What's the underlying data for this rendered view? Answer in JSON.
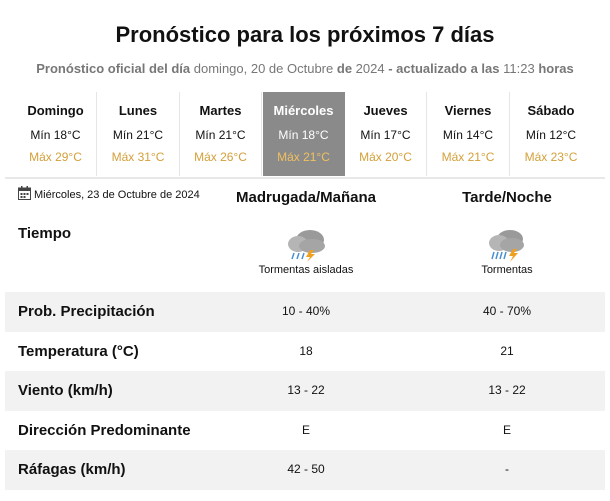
{
  "header": {
    "title": "Pronóstico para los próximos 7 días",
    "subtitle": [
      {
        "text": "Pronóstico oficial del día",
        "bold": true
      },
      {
        "text": "domingo, 20 de Octubre",
        "bold": false
      },
      {
        "text": "de",
        "bold": true
      },
      {
        "text": "2024",
        "bold": false
      },
      {
        "text": "- actualizado a las",
        "bold": true
      },
      {
        "text": "11:23",
        "bold": false
      },
      {
        "text": "horas",
        "bold": true
      }
    ]
  },
  "days": [
    {
      "name": "Domingo",
      "min": "Mín 18°C",
      "max": "Máx 29°C",
      "selected": false
    },
    {
      "name": "Lunes",
      "min": "Mín 21°C",
      "max": "Máx 31°C",
      "selected": false
    },
    {
      "name": "Martes",
      "min": "Mín 21°C",
      "max": "Máx 26°C",
      "selected": false
    },
    {
      "name": "Miércoles",
      "min": "Mín 18°C",
      "max": "Máx 21°C",
      "selected": true
    },
    {
      "name": "Jueves",
      "min": "Mín 17°C",
      "max": "Máx 20°C",
      "selected": false
    },
    {
      "name": "Viernes",
      "min": "Mín 14°C",
      "max": "Máx 21°C",
      "selected": false
    },
    {
      "name": "Sábado",
      "min": "Mín 12°C",
      "max": "Máx 23°C",
      "selected": false
    }
  ],
  "detail": {
    "date": "Miércoles, 23 de Octubre de 2024",
    "columns": [
      "Madrugada/Mañana",
      "Tarde/Noche"
    ],
    "weather": {
      "label": "Tiempo",
      "values": [
        "Tormentas aisladas",
        "Tormentas"
      ]
    },
    "rows": [
      {
        "label": "Prob. Precipitación",
        "values": [
          "10 - 40%",
          "40 - 70%"
        ]
      },
      {
        "label": "Temperatura (°C)",
        "values": [
          "18",
          "21"
        ]
      },
      {
        "label": "Viento (km/h)",
        "values": [
          "13 - 22",
          "13 - 22"
        ]
      },
      {
        "label": "Dirección Predominante",
        "values": [
          "E",
          "E"
        ]
      },
      {
        "label": "Ráfagas (km/h)",
        "values": [
          "42 - 50",
          "-"
        ]
      }
    ]
  }
}
